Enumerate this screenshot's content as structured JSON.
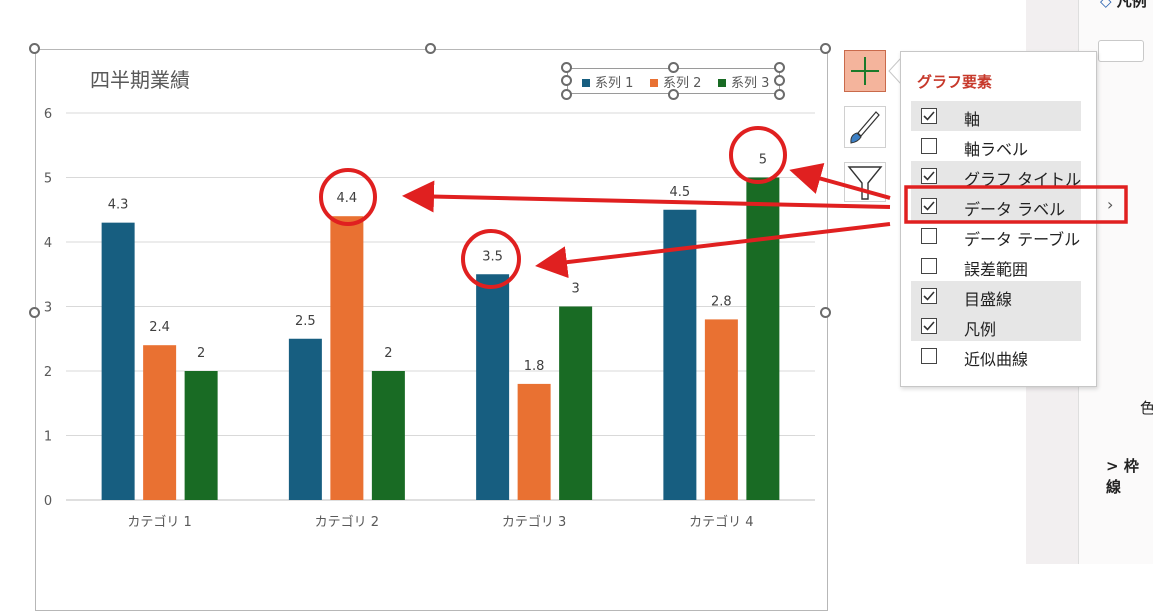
{
  "chart_data": {
    "type": "bar",
    "title": "四半期業績",
    "categories": [
      "カテゴリ 1",
      "カテゴリ 2",
      "カテゴリ 3",
      "カテゴリ 4"
    ],
    "series": [
      {
        "name": "系列 1",
        "color": "#175e80",
        "values": [
          4.3,
          2.5,
          3.5,
          4.5
        ]
      },
      {
        "name": "系列 2",
        "color": "#e97132",
        "values": [
          2.4,
          4.4,
          1.8,
          2.8
        ]
      },
      {
        "name": "系列 3",
        "color": "#196b24",
        "values": [
          2,
          2,
          3,
          5
        ]
      }
    ],
    "ylim": [
      0,
      6
    ],
    "yticks": [
      "0",
      "1",
      "2",
      "3",
      "4",
      "5",
      "6"
    ],
    "grid": true,
    "data_labels": true,
    "legend_position": "top-right"
  },
  "callout": {
    "highlighted_labels": [
      "4.4",
      "3.5",
      "5"
    ],
    "color": "#e02020"
  },
  "side_buttons": [
    "plus-icon",
    "brush-icon",
    "filter-icon"
  ],
  "chart_elements_menu": {
    "title": "グラフ要素",
    "items": [
      {
        "label": "軸",
        "checked": true
      },
      {
        "label": "軸ラベル",
        "checked": false
      },
      {
        "label": "グラフ タイトル",
        "checked": true
      },
      {
        "label": "データ ラベル",
        "checked": true
      },
      {
        "label": "データ テーブル",
        "checked": false
      },
      {
        "label": "誤差範囲",
        "checked": false
      },
      {
        "label": "目盛線",
        "checked": true
      },
      {
        "label": "凡例",
        "checked": true
      },
      {
        "label": "近似曲線",
        "checked": false
      }
    ]
  },
  "side_panel": {
    "top_label": "凡例",
    "color_label": "色",
    "border_label": "枠線"
  }
}
